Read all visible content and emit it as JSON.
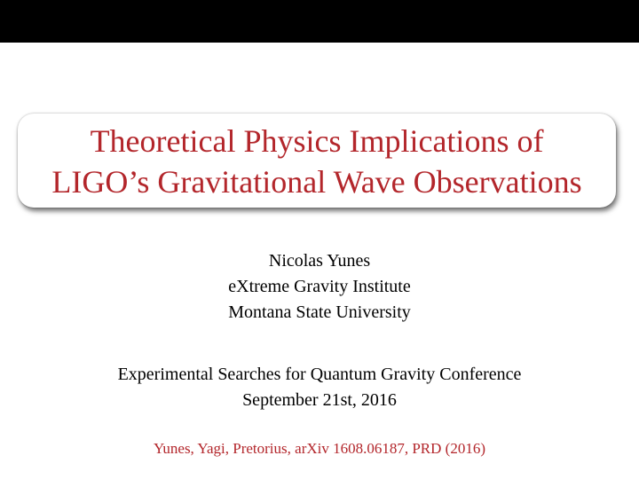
{
  "title": {
    "lines": [
      "Theoretical Physics Implications of",
      "LIGO’s Gravitational Wave Observations"
    ]
  },
  "author": {
    "lines": [
      "Nicolas  Yunes",
      "eXtreme Gravity Institute",
      "Montana State University"
    ]
  },
  "event": {
    "lines": [
      "Experimental Searches for Quantum Gravity Conference",
      "September 21st, 2016"
    ]
  },
  "reference": "Yunes, Yagi, Pretorius, arXiv 1608.06187, PRD (2016)"
}
